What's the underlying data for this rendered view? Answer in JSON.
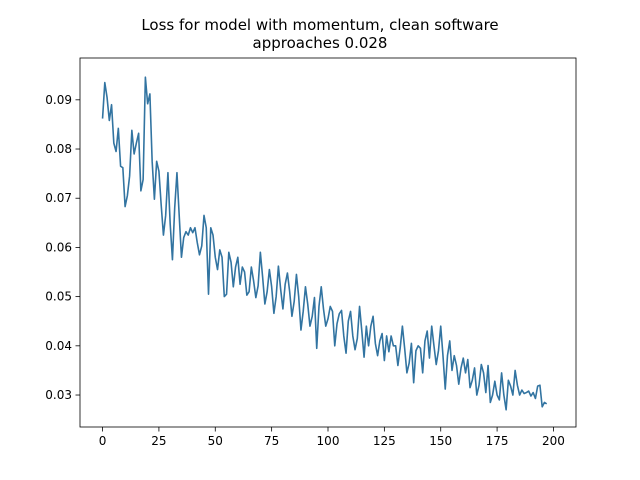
{
  "chart_data": {
    "type": "line",
    "title": [
      "Loss for model with momentum, clean software",
      "approaches 0.028"
    ],
    "xlabel": "",
    "ylabel": "",
    "xlim": [
      -10,
      210
    ],
    "ylim": [
      0.0235,
      0.0985
    ],
    "x_ticks": [
      0,
      25,
      50,
      75,
      100,
      125,
      150,
      175,
      200
    ],
    "x_tick_labels": [
      "0",
      "25",
      "50",
      "75",
      "100",
      "125",
      "150",
      "175",
      "200"
    ],
    "y_ticks": [
      0.03,
      0.04,
      0.05,
      0.06,
      0.07,
      0.08,
      0.09
    ],
    "y_tick_labels": [
      "0.03",
      "0.04",
      "0.05",
      "0.06",
      "0.07",
      "0.08",
      "0.09"
    ],
    "grid": false,
    "legend": "none",
    "series": [
      {
        "color": "#3274a1",
        "x_start": 0,
        "x_step": 1,
        "values": [
          0.0862,
          0.0935,
          0.0905,
          0.0858,
          0.089,
          0.0812,
          0.0795,
          0.0842,
          0.0765,
          0.0762,
          0.0683,
          0.0705,
          0.0745,
          0.0838,
          0.079,
          0.0812,
          0.0832,
          0.0715,
          0.0738,
          0.0946,
          0.0892,
          0.0912,
          0.0775,
          0.0698,
          0.0775,
          0.0755,
          0.0687,
          0.0625,
          0.0665,
          0.0752,
          0.0648,
          0.0575,
          0.068,
          0.0752,
          0.0665,
          0.058,
          0.062,
          0.0632,
          0.0625,
          0.064,
          0.063,
          0.064,
          0.061,
          0.0585,
          0.0603,
          0.0665,
          0.064,
          0.0505,
          0.064,
          0.0625,
          0.058,
          0.0555,
          0.0595,
          0.058,
          0.05,
          0.0505,
          0.059,
          0.057,
          0.052,
          0.056,
          0.058,
          0.0525,
          0.056,
          0.055,
          0.0503,
          0.051,
          0.056,
          0.0532,
          0.0498,
          0.0522,
          0.059,
          0.054,
          0.0485,
          0.051,
          0.0555,
          0.052,
          0.0466,
          0.05,
          0.0562,
          0.0515,
          0.0475,
          0.0525,
          0.0548,
          0.051,
          0.046,
          0.049,
          0.0545,
          0.05,
          0.0432,
          0.047,
          0.052,
          0.0485,
          0.044,
          0.046,
          0.0498,
          0.0395,
          0.048,
          0.052,
          0.0475,
          0.044,
          0.0455,
          0.048,
          0.047,
          0.04,
          0.0445,
          0.0465,
          0.0472,
          0.042,
          0.0385,
          0.045,
          0.047,
          0.042,
          0.0392,
          0.0415,
          0.048,
          0.043,
          0.0377,
          0.044,
          0.04,
          0.044,
          0.046,
          0.0405,
          0.038,
          0.041,
          0.0425,
          0.037,
          0.042,
          0.0388,
          0.042,
          0.04,
          0.04,
          0.036,
          0.0395,
          0.044,
          0.0395,
          0.0345,
          0.0365,
          0.0405,
          0.0325,
          0.039,
          0.04,
          0.0395,
          0.0345,
          0.041,
          0.043,
          0.0375,
          0.044,
          0.04,
          0.0362,
          0.039,
          0.044,
          0.038,
          0.0312,
          0.038,
          0.041,
          0.035,
          0.038,
          0.036,
          0.0322,
          0.0355,
          0.0375,
          0.0345,
          0.0372,
          0.0315,
          0.033,
          0.0355,
          0.03,
          0.032,
          0.0362,
          0.0345,
          0.0305,
          0.036,
          0.0285,
          0.03,
          0.0328,
          0.03,
          0.029,
          0.0345,
          0.03,
          0.027,
          0.033,
          0.0318,
          0.03,
          0.035,
          0.032,
          0.03,
          0.031,
          0.0303,
          0.0305,
          0.0308,
          0.0298,
          0.0305,
          0.0293,
          0.0318,
          0.032,
          0.0276,
          0.0285,
          0.0282
        ]
      }
    ]
  }
}
